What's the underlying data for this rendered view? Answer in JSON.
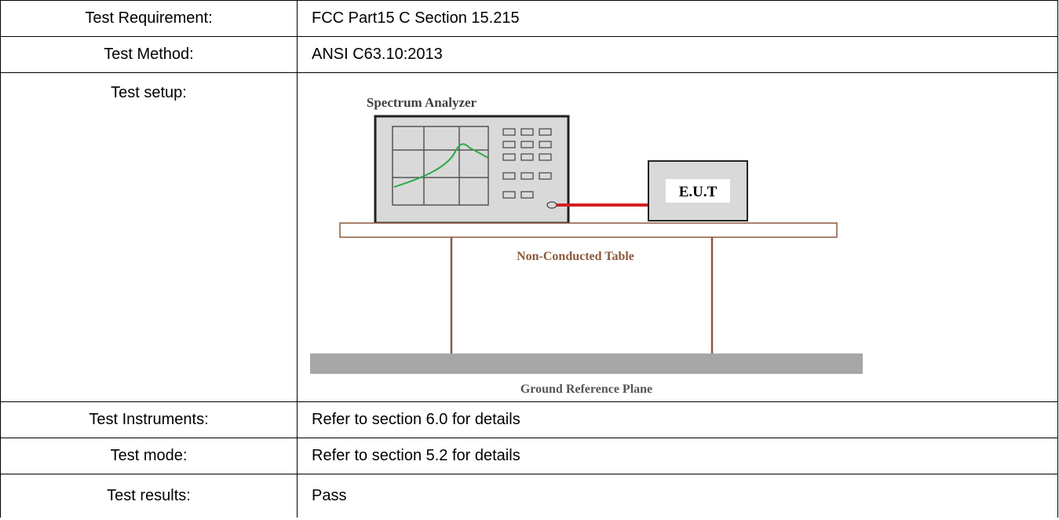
{
  "table": {
    "rows": [
      [
        "Test Requirement:",
        "FCC Part15 C Section 15.215"
      ],
      [
        "Test Method:",
        "ANSI C63.10:2013"
      ],
      [
        "Test setup:"
      ],
      [
        "Test Instruments:",
        "Refer to section 6.0 for details"
      ],
      [
        "Test mode:",
        "Refer to section 5.2 for details"
      ],
      [
        "Test results:",
        "Pass"
      ]
    ]
  },
  "diagram": {
    "labels": {
      "analyzer": "Spectrum Analyzer",
      "eut": "E.U.T",
      "table": "Non-Conducted Table",
      "ground": "Ground Reference Plane"
    }
  }
}
